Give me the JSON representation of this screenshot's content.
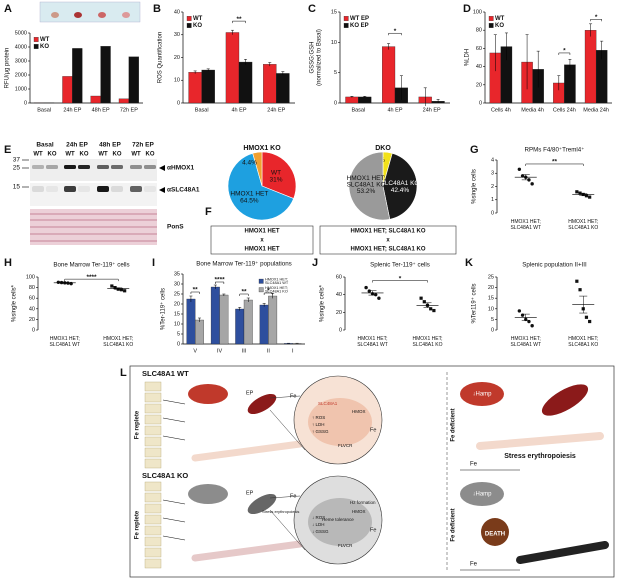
{
  "panel_labels": [
    "A",
    "B",
    "C",
    "D",
    "E",
    "F",
    "G",
    "H",
    "I",
    "J",
    "K",
    "L"
  ],
  "chart_data": [
    {
      "type": "bar",
      "ylabel": "RFU/μg protein",
      "categories": [
        "Basal",
        "24h EP",
        "48h EP",
        "72h EP"
      ],
      "series": [
        {
          "name": "WT",
          "color": "#e8262b",
          "values": [
            20,
            1900,
            500,
            300
          ]
        },
        {
          "name": "KO",
          "color": "#111111",
          "values": [
            20,
            3900,
            4050,
            3300
          ]
        }
      ],
      "ylim": [
        0,
        5000
      ],
      "yticks": [
        0,
        1000,
        2000,
        3000,
        4000,
        5000
      ],
      "legend": "upper left"
    },
    {
      "type": "bar",
      "ylabel": "ROS Quantification",
      "categories": [
        "Basal",
        "4h EP",
        "24h EP"
      ],
      "series": [
        {
          "name": "WT",
          "color": "#e8262b",
          "values": [
            13.5,
            31,
            17
          ],
          "errors": [
            0.6,
            1,
            0.8
          ]
        },
        {
          "name": "KO",
          "color": "#111111",
          "values": [
            14.5,
            18,
            13
          ],
          "errors": [
            0.5,
            1.2,
            0.8
          ]
        }
      ],
      "ylim": [
        0,
        40
      ],
      "yticks": [
        0,
        10,
        20,
        30,
        40
      ],
      "legend": "upper left",
      "annotations": [
        "**"
      ]
    },
    {
      "type": "bar",
      "ylabel": [
        "GSSG:GSH",
        "(normalized to Basal)"
      ],
      "categories": [
        "Basal",
        "4h EP",
        "24h EP"
      ],
      "series": [
        {
          "name": "WT EP",
          "color": "#e8262b",
          "values": [
            1,
            9.3,
            1
          ],
          "errors": [
            0.1,
            0.5,
            1.5
          ]
        },
        {
          "name": "KO EP",
          "color": "#111111",
          "values": [
            1,
            2.5,
            0.3
          ],
          "errors": [
            0.1,
            2,
            0.3
          ]
        }
      ],
      "ylim": [
        0,
        15
      ],
      "yticks": [
        0,
        5,
        10,
        15
      ],
      "legend": "upper left",
      "annotations": [
        "*"
      ]
    },
    {
      "type": "bar",
      "ylabel": "%LDH",
      "categories": [
        "Cells 4h",
        "Media 4h",
        "Cells 24h",
        "Media 24h"
      ],
      "series": [
        {
          "name": "WT",
          "color": "#e8262b",
          "values": [
            55,
            45,
            22,
            80
          ],
          "errors": [
            20,
            30,
            8,
            7
          ]
        },
        {
          "name": "KO",
          "color": "#111111",
          "values": [
            62,
            37,
            42,
            58
          ],
          "errors": [
            15,
            20,
            6,
            10
          ]
        }
      ],
      "ylim": [
        0,
        100
      ],
      "yticks": [
        0,
        20,
        40,
        60,
        80,
        100
      ],
      "legend": "upper left",
      "annotations": [
        "*",
        "*"
      ]
    },
    {
      "type": "pie",
      "title": "HMOX1 KO",
      "categories": [
        "WT",
        "HMOX1 HET",
        null
      ],
      "values": [
        31,
        64.5,
        4.4
      ],
      "value_labels": [
        "31%",
        "64.5%",
        "4.4%"
      ],
      "colors": [
        "#e8262b",
        "#1ea0e0",
        "#f0a030"
      ],
      "cross": [
        "HMOX1 HET",
        "x",
        "HMOX1 HET"
      ]
    },
    {
      "type": "pie",
      "title": "DKO",
      "categories": [
        null,
        "SLC48A1 KO",
        "HMOX1 HET; SLC48A1 KO"
      ],
      "values": [
        4.4,
        42.4,
        53.2
      ],
      "value_labels": [
        "4.4%",
        "42.4%",
        "53.2%"
      ],
      "colors": [
        "#f2e11a",
        "#1a1a1a",
        "#9a9a9a"
      ],
      "cross": [
        "HMOX1 HET; SLC48A1 KO",
        "x",
        "HMOX1 HET; SLC48A1 KO"
      ]
    },
    {
      "type": "dot",
      "title": "RPMs F4/80⁺Treml4⁺",
      "ylabel": "%single cells",
      "categories": [
        "HMOX1 HET; SLC48A1 WT",
        "HMOX1 HET; SLC48A1 KO"
      ],
      "points": [
        [
          3.3,
          2.8,
          2.7,
          2.5,
          2.2
        ],
        [
          1.6,
          1.5,
          1.4,
          1.3,
          1.2
        ]
      ],
      "means": [
        2.7,
        1.4
      ],
      "errors": [
        0.2,
        0.08
      ],
      "markers": [
        "circle",
        "square"
      ],
      "ylim": [
        0,
        4
      ],
      "yticks": [
        0,
        1,
        2,
        3,
        4
      ],
      "annotations": [
        "**"
      ]
    },
    {
      "type": "dot",
      "title": "Bone Marrow Ter-119⁺ cells",
      "ylabel": "%single cells*",
      "categories": [
        "HMOX1 HET; SLC48A1 WT",
        "HMOX1 HET; SLC48A1 KO"
      ],
      "points": [
        [
          90,
          89.5,
          89,
          88.5,
          87.5
        ],
        [
          83,
          80,
          77,
          76,
          74
        ]
      ],
      "means": [
        89,
        78
      ],
      "errors": [
        0.5,
        1.5
      ],
      "markers": [
        "circle",
        "square"
      ],
      "ylim": [
        0,
        100
      ],
      "yticks": [
        0,
        20,
        40,
        60,
        80,
        100
      ],
      "annotations": [
        "****"
      ]
    },
    {
      "type": "bar",
      "title": "Bone Marrow Ter-119⁺ populations",
      "ylabel": "%Ter-119⁺ cells",
      "categories": [
        "V",
        "IV",
        "III",
        "II",
        "I"
      ],
      "series": [
        {
          "name": "HMOX1 HET; SLC48A1 WT",
          "color": "#2e4f9e",
          "values": [
            22.5,
            28.5,
            17.5,
            19.5,
            0.3
          ],
          "errors": [
            1.5,
            1,
            0.8,
            0.8,
            0.1
          ]
        },
        {
          "name": "HMOX1 HET; SLC48A1 KO",
          "color": "#a6a6a6",
          "values": [
            12,
            24.5,
            22,
            24,
            0.3
          ],
          "errors": [
            1,
            0.5,
            1,
            1.2,
            0.1
          ]
        }
      ],
      "ylim": [
        0,
        35
      ],
      "yticks": [
        0,
        5,
        10,
        15,
        20,
        25,
        30,
        35
      ],
      "legend": "upper right",
      "annotations": [
        "**",
        "****",
        "**",
        "*"
      ]
    },
    {
      "type": "dot",
      "title": "Splenic Ter-119⁺ cells",
      "ylabel": "%single cells*",
      "categories": [
        "HMOX1 HET; SLC48A1 WT",
        "HMOX1 HET; SLC48A1 KO"
      ],
      "points": [
        [
          48,
          44,
          41,
          40,
          36
        ],
        [
          36,
          32,
          28,
          24,
          22
        ]
      ],
      "means": [
        42,
        28
      ],
      "errors": [
        2.5,
        2.8
      ],
      "markers": [
        "circle",
        "square"
      ],
      "ylim": [
        0,
        60
      ],
      "yticks": [
        0,
        20,
        40,
        60
      ],
      "annotations": [
        "*"
      ]
    },
    {
      "type": "dot",
      "title": "Splenic population II+III",
      "ylabel": "%Ter119⁺ cells",
      "categories": [
        "HMOX1 HET; SLC48A1 WT",
        "HMOX1 HET; SLC48A1 KO"
      ],
      "points": [
        [
          9,
          7,
          5,
          4,
          2
        ],
        [
          23,
          19,
          10,
          6,
          4
        ]
      ],
      "means": [
        6,
        12
      ],
      "errors": [
        1.5,
        4
      ],
      "markers": [
        "circle",
        "square"
      ],
      "ylim": [
        0,
        25
      ],
      "yticks": [
        0,
        5,
        10,
        15,
        20,
        25
      ]
    }
  ],
  "blot": {
    "timepoints": [
      "Basal",
      "24h EP",
      "48h EP",
      "72h EP"
    ],
    "genotypes": [
      "WT",
      "KO"
    ],
    "markers": [
      "37",
      "25",
      "15"
    ],
    "antibodies": [
      "αHMOX1",
      "αSLC48A1"
    ],
    "stain": "PonS"
  },
  "diagram": {
    "wt_title": "SLC48A1 WT",
    "ko_title": "SLC48A1 KO",
    "fe_replete": "Fe replete",
    "fe_deficient": "Fe deficient",
    "ep": "EP",
    "stress": "Stress erythropoiesis",
    "hamp": "↓Hamp",
    "death": "DEATH",
    "fe": "Fe",
    "wt_effects": [
      "↑ ROS",
      "↑ LDH",
      "↑ GSSG"
    ],
    "ko_effects": [
      "↓ ROS",
      "↓ LDH",
      "↓ GSSG"
    ],
    "slc": "SLC48A1",
    "hmox": "HMOX",
    "flvcr": "FLVCR",
    "heme_tolerance": "Heme tolerance",
    "hz": "Hz formation"
  }
}
